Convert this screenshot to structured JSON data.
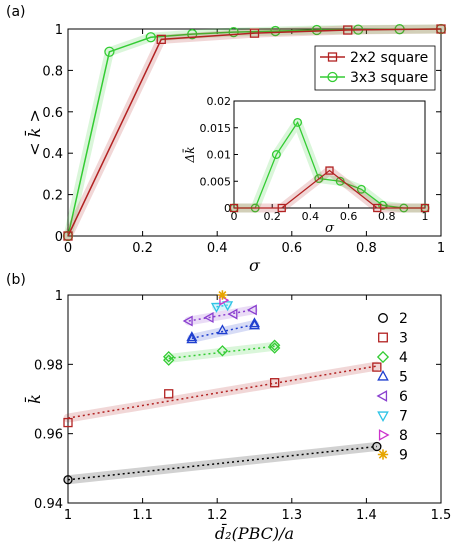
{
  "chart_data": [
    {
      "panel": "(a)",
      "type": "line",
      "xlabel": "σ",
      "ylabel": "< k̄ >",
      "xlim": [
        0,
        1
      ],
      "ylim": [
        0,
        1
      ],
      "xticks": [
        "0",
        "0.2",
        "0.4",
        "0.6",
        "0.8",
        "1"
      ],
      "yticks": [
        "0",
        "0.2",
        "0.4",
        "0.6",
        "0.8",
        "1"
      ],
      "legend_position": "upper-right",
      "series": [
        {
          "name": "2x2 square",
          "color": "#b22222",
          "marker": "square",
          "x": [
            0,
            0.25,
            0.5,
            0.75,
            1
          ],
          "y": [
            0,
            0.95,
            0.98,
            0.995,
            1
          ]
        },
        {
          "name": "3x3 square",
          "color": "#33cc33",
          "marker": "circle",
          "x": [
            0,
            0.111,
            0.222,
            0.333,
            0.444,
            0.556,
            0.667,
            0.778,
            0.889,
            1
          ],
          "y": [
            0,
            0.89,
            0.96,
            0.975,
            0.985,
            0.99,
            0.995,
            0.997,
            0.999,
            1
          ]
        }
      ],
      "inset": {
        "type": "line",
        "xlabel": "σ",
        "ylabel": "Δk̄",
        "xlim": [
          0,
          1
        ],
        "ylim": [
          0,
          0.02
        ],
        "xticks": [
          "0",
          "0.2",
          "0.4",
          "0.6",
          "0.8",
          "1"
        ],
        "yticks": [
          "0",
          "0.005",
          "0.01",
          "0.015",
          "0.02"
        ],
        "series": [
          {
            "name": "2x2 square",
            "color": "#b22222",
            "marker": "square",
            "x": [
              0,
              0.25,
              0.5,
              0.75,
              1
            ],
            "y": [
              0,
              0,
              0.007,
              0,
              0
            ]
          },
          {
            "name": "3x3 square",
            "color": "#33cc33",
            "marker": "circle",
            "x": [
              0,
              0.111,
              0.222,
              0.333,
              0.444,
              0.556,
              0.667,
              0.778,
              0.889,
              1
            ],
            "y": [
              0,
              0,
              0.01,
              0.016,
              0.0055,
              0.005,
              0.0035,
              0.0005,
              0,
              0
            ]
          }
        ]
      }
    },
    {
      "panel": "(b)",
      "type": "scatter",
      "xlabel": "d̄₂(PBC)/a",
      "ylabel": "k̄",
      "xlim": [
        1,
        1.5
      ],
      "ylim": [
        0.94,
        1
      ],
      "xticks": [
        "1",
        "1.1",
        "1.2",
        "1.3",
        "1.4",
        "1.5"
      ],
      "yticks": [
        "0.94",
        "0.96",
        "0.98",
        "1"
      ],
      "legend_position": "right",
      "series": [
        {
          "name": "2",
          "color": "#000000",
          "marker": "circle",
          "x": [
            1,
            1.414
          ],
          "y": [
            0.9467,
            0.9563
          ]
        },
        {
          "name": "3",
          "color": "#b22222",
          "marker": "square",
          "x": [
            1,
            1.135,
            1.277,
            1.414
          ],
          "y": [
            0.9632,
            0.9715,
            0.9747,
            0.9792
          ]
        },
        {
          "name": "4",
          "color": "#33cc33",
          "marker": "diamond",
          "x": [
            1.135,
            1.135,
            1.207,
            1.277,
            1.277
          ],
          "y": [
            0.9812,
            0.9822,
            0.9839,
            0.9847,
            0.9855
          ]
        },
        {
          "name": "5",
          "color": "#1f3fcf",
          "marker": "triangle-up",
          "x": [
            1.166,
            1.166,
            1.207,
            1.25,
            1.25
          ],
          "y": [
            0.9872,
            0.9878,
            0.9898,
            0.9912,
            0.9918
          ]
        },
        {
          "name": "6",
          "color": "#8a3fcf",
          "marker": "triangle-left",
          "x": [
            1.162,
            1.19,
            1.222,
            1.248
          ],
          "y": [
            0.9925,
            0.9935,
            0.9945,
            0.9957
          ]
        },
        {
          "name": "7",
          "color": "#2ec4e6",
          "marker": "triangle-down",
          "x": [
            1.199,
            1.214
          ],
          "y": [
            0.9966,
            0.9971
          ]
        },
        {
          "name": "8",
          "color": "#cc33cc",
          "marker": "triangle-right",
          "x": [
            1.208
          ],
          "y": [
            0.9985
          ]
        },
        {
          "name": "9",
          "color": "#e6a500",
          "marker": "star",
          "x": [
            1.207
          ],
          "y": [
            1.0
          ]
        }
      ],
      "fit_lines": [
        {
          "series": "2",
          "x": [
            1,
            1.414
          ],
          "y": [
            0.9467,
            0.9563
          ]
        },
        {
          "series": "3",
          "x": [
            1,
            1.414
          ],
          "y": [
            0.9645,
            0.9795
          ]
        },
        {
          "series": "4",
          "x": [
            1.135,
            1.277
          ],
          "y": [
            0.9817,
            0.9852
          ]
        },
        {
          "series": "5",
          "x": [
            1.166,
            1.25
          ],
          "y": [
            0.9875,
            0.9915
          ]
        },
        {
          "series": "6",
          "x": [
            1.162,
            1.248
          ],
          "y": [
            0.9925,
            0.9957
          ]
        },
        {
          "series": "7",
          "x": [
            1.199,
            1.214
          ],
          "y": [
            0.9966,
            0.9971
          ]
        }
      ]
    }
  ]
}
